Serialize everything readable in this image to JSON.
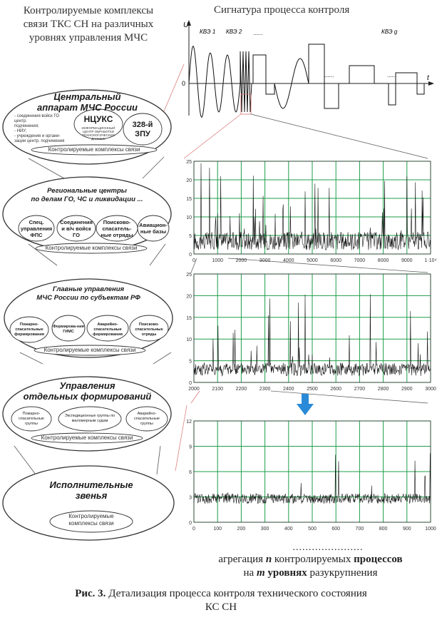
{
  "left_title": [
    "Контролируемые комплексы",
    "связи ТКС СН на различных",
    "уровнях управления МЧС"
  ],
  "right_title": "Сигнатура процесса контроля",
  "levels": [
    {
      "title": [
        "Центральный",
        "аппарат МЧС России"
      ],
      "small_text": [
        "- соединения войск ГО центр.",
        "подчинения;",
        "- НИУ;",
        "- учреждения и органи-",
        "зации центр. подчинения"
      ],
      "bubbles": [
        "НЦУКС",
        "328-й ЗПУ"
      ],
      "bubble_sub": "ИНФОРМАЦИОННЫЙ ЦЕНТР ОБРАБОТКИ ТЕХНОЛОГИЧЕСКИХ ДАННЫХ",
      "caption": "Контролируемые комплексы связи"
    },
    {
      "title": [
        "Региональные центры",
        "по делам ГО, ЧС и ликвидации ..."
      ],
      "bubbles": [
        "Спец. управления ФПС",
        "Соединения и в/ч войск ГО",
        "Поисково-спасатель-ные отряды",
        "Авиацион-ные базы"
      ],
      "caption": "Контролируемые комплексы связи"
    },
    {
      "title": [
        "Главные управления",
        "МЧС России по субъектам РФ"
      ],
      "bubbles": [
        "Пожарно-спасательные формирования",
        "Формирова-ния ГИМС",
        "Аварийно-спасательные формирования",
        "Поисково-спасательные отряды"
      ],
      "caption": "Контролируемые комплексы связи"
    },
    {
      "title": [
        "Управления",
        "отдельных формирований"
      ],
      "bubbles": [
        "Пожарно-спасательные группы",
        "Экспедиционные группы по маломерным судам",
        "Аварийно-спасательные группы"
      ],
      "caption": "Контролируемые комплексы связи"
    },
    {
      "title": [
        "Исполнительные",
        "звенья"
      ],
      "bubbles": [],
      "caption": "Контролируемые комплексы связи"
    }
  ],
  "signature": {
    "u_label": "U",
    "t_label": "t",
    "zero_label": "0",
    "kve_labels": [
      "КВЭ 1",
      "КВЭ 2",
      "КВЭ g"
    ],
    "dots": "......"
  },
  "chart_data": [
    {
      "type": "line",
      "x_ticks": [
        "0",
        "1000",
        "2000",
        "3000",
        "4000",
        "5000",
        "6000",
        "7000",
        "8000",
        "9000",
        "1·10⁴"
      ],
      "y_ticks": [
        "0",
        "5",
        "10",
        "15",
        "20",
        "25"
      ],
      "xlim": [
        0,
        10000
      ],
      "ylim": [
        0,
        25
      ],
      "grid": true,
      "line_color": "#111111",
      "grid_color": "#1e9e4a"
    },
    {
      "type": "line",
      "x_ticks": [
        "2000",
        "2100",
        "2200",
        "2300",
        "2400",
        "2500",
        "2600",
        "2700",
        "2800",
        "2900",
        "3000"
      ],
      "y_ticks": [
        "0",
        "5",
        "10",
        "15",
        "20",
        "25"
      ],
      "xlim": [
        2000,
        3000
      ],
      "ylim": [
        0,
        25
      ],
      "grid": true,
      "line_color": "#111111",
      "grid_color": "#1e9e4a"
    },
    {
      "type": "line",
      "x_ticks": [
        "0",
        "100",
        "200",
        "300",
        "400",
        "500",
        "600",
        "700",
        "800",
        "900",
        "1000"
      ],
      "y_ticks": [
        "0",
        "3",
        "6",
        "9",
        "12"
      ],
      "xlim": [
        0,
        1000
      ],
      "ylim": [
        0,
        12
      ],
      "grid": true,
      "line_color": "#111111",
      "grid_color": "#1e9e4a"
    }
  ],
  "arrow_color": "#2a8ad8",
  "bottom": {
    "dots": "......................",
    "line2_parts": [
      "агрегация ",
      "n",
      " контролируемых ",
      "процессов"
    ],
    "line3_parts": [
      "на ",
      "m",
      " уровнях",
      " разукрупнения"
    ]
  },
  "caption": {
    "label": "Рис. 3.",
    "text": " Детализация процесса контроля технического состояния",
    "text2": "КС СН"
  }
}
